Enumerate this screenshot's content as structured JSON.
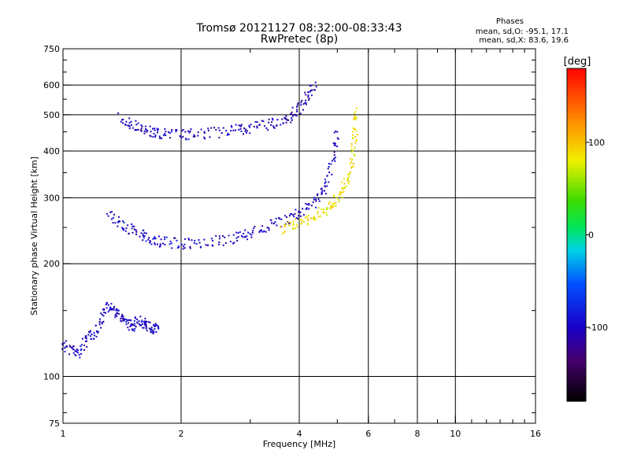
{
  "chart_data": {
    "type": "scatter",
    "title": "Tromsø 20121127 08:32:00-08:33:43",
    "subtitle": "RwPretec (8p)",
    "stats": {
      "heading": "Phases",
      "line1": "mean, sd,O: -95.1, 17.1",
      "line2": "mean, sd,X:  83.6, 19.6"
    },
    "xlabel": "Frequency [MHz]",
    "ylabel": "Stationary phase Virtual Height [km]",
    "x_scale": "log",
    "y_scale": "log",
    "xlim": [
      1,
      16
    ],
    "ylim": [
      75,
      750
    ],
    "x_ticks": [
      1,
      2,
      4,
      6,
      8,
      10,
      16
    ],
    "y_ticks": [
      75,
      100,
      200,
      300,
      400,
      500,
      600,
      750
    ],
    "x_grid": [
      2,
      4,
      6,
      8,
      10
    ],
    "y_grid": [
      100,
      200,
      300,
      400,
      500,
      600
    ],
    "grid": true,
    "colorbar": {
      "label": "[deg]",
      "range": [
        -180,
        180
      ],
      "ticks": [
        100,
        0,
        -100
      ],
      "colormap": "rainbow-black-to-red"
    },
    "series": [
      {
        "trace": "lower-trace-O-mode",
        "x": [
          1.0,
          1.05,
          1.1,
          1.15,
          1.2,
          1.25,
          1.3,
          1.35,
          1.4,
          1.45,
          1.5,
          1.55,
          1.6,
          1.65,
          1.7,
          1.75
        ],
        "y": [
          122,
          118,
          115,
          125,
          130,
          140,
          155,
          150,
          145,
          140,
          135,
          140,
          138,
          136,
          134,
          135
        ],
        "phase": -100
      },
      {
        "trace": "F1-F2-trace-O-mode",
        "x": [
          1.3,
          1.4,
          1.5,
          1.6,
          1.7,
          1.8,
          2.0,
          2.2,
          2.5,
          2.8,
          3.0,
          3.3,
          3.6,
          3.9,
          4.2,
          4.5,
          4.7,
          4.9,
          5.0
        ],
        "y": [
          270,
          255,
          245,
          238,
          232,
          228,
          226,
          227,
          230,
          236,
          242,
          250,
          258,
          268,
          282,
          300,
          330,
          380,
          450
        ],
        "phase": -100
      },
      {
        "trace": "E-upper-trace-O-mode",
        "x": [
          1.4,
          1.5,
          1.6,
          1.7,
          1.8,
          2.0,
          2.2,
          2.5,
          2.8,
          3.0,
          3.3,
          3.6,
          3.8,
          4.0,
          4.2,
          4.4
        ],
        "y": [
          490,
          470,
          455,
          448,
          445,
          442,
          443,
          448,
          455,
          460,
          468,
          480,
          495,
          520,
          560,
          610
        ],
        "phase": -105
      },
      {
        "trace": "X-mode-trace",
        "x": [
          3.6,
          3.9,
          4.2,
          4.5,
          4.8,
          5.0,
          5.2,
          5.4,
          5.5,
          5.55,
          5.6
        ],
        "y": [
          248,
          255,
          262,
          272,
          285,
          300,
          320,
          350,
          400,
          450,
          520
        ],
        "phase": 85
      }
    ]
  }
}
